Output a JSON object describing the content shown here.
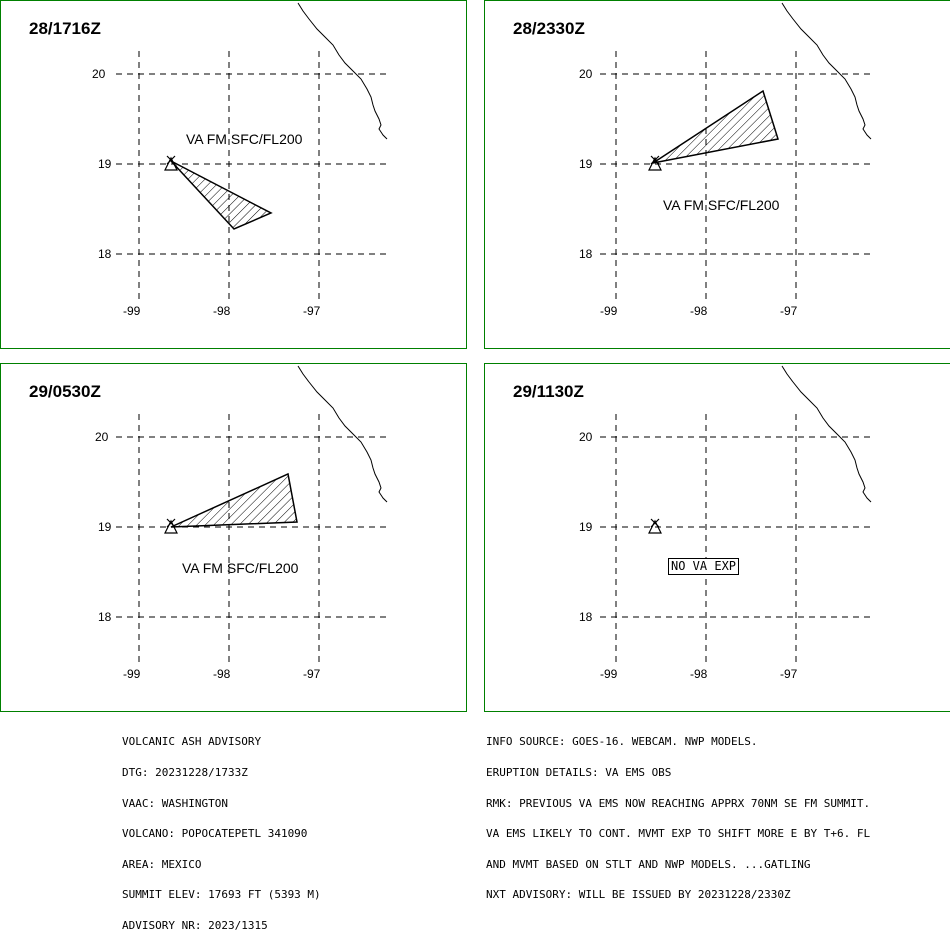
{
  "panels": [
    {
      "time": "28/1716Z",
      "va_label": "VA FM SFC/FL200"
    },
    {
      "time": "28/2330Z",
      "va_label": "VA FM SFC/FL200"
    },
    {
      "time": "29/0530Z",
      "va_label": "VA FM SFC/FL200"
    },
    {
      "time": "29/1130Z",
      "no_va_label": "NO VA EXP"
    }
  ],
  "axes": {
    "lat_labels": [
      "20",
      "19",
      "18"
    ],
    "lon_labels": [
      "-99",
      "-98",
      "-97"
    ]
  },
  "advisory_left": [
    "VOLCANIC ASH ADVISORY",
    "DTG: 20231228/1733Z",
    "VAAC: WASHINGTON",
    "VOLCANO: POPOCATEPETL 341090",
    "AREA: MEXICO",
    "SUMMIT ELEV: 17693 FT (5393 M)",
    "ADVISORY NR: 2023/1315"
  ],
  "advisory_right": [
    "INFO SOURCE: GOES-16. WEBCAM. NWP MODELS.",
    "ERUPTION DETAILS: VA EMS OBS",
    "RMK: PREVIOUS VA EMS NOW REACHING APPRX 70NM SE FM SUMMIT.",
    "VA EMS LIKELY TO CONT. MVMT EXP TO SHIFT MORE E BY T+6. FL",
    "AND MVMT BASED ON STLT AND NWP MODELS. ...GATLING",
    "NXT ADVISORY: WILL BE ISSUED BY 20231228/2330Z"
  ],
  "colors": {
    "border": "#008000",
    "ink": "#000000"
  }
}
